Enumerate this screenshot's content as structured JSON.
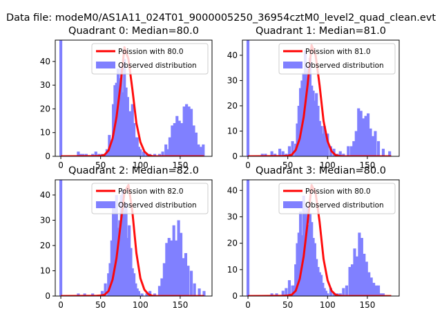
{
  "figure": {
    "suptitle": "Data file: modeM0/AS1A11_024T01_9000005250_36954cztM0_level2_quad_clean.evt"
  },
  "chart_data": [
    {
      "type": "bar",
      "title": "Quadrant 0: Median=80.0",
      "xlabel": "",
      "ylabel": "",
      "xlim": [
        -7,
        190
      ],
      "ylim": [
        0,
        49
      ],
      "xticks": [
        0,
        50,
        100,
        150
      ],
      "yticks": [
        0,
        10,
        20,
        30,
        40
      ],
      "legend": "top-right",
      "histogram": {
        "name": "Observed distribution",
        "color": "#8080ff",
        "bin_width": 3.6,
        "bin_centers": [
          0,
          4,
          22,
          25,
          28,
          32,
          36,
          40,
          44,
          48,
          52,
          56,
          58,
          61,
          64,
          66,
          68,
          70,
          72,
          74,
          76,
          78,
          80,
          82,
          84,
          86,
          88,
          90,
          92,
          94,
          96,
          98,
          100,
          104,
          108,
          112,
          118,
          124,
          128,
          132,
          134,
          137,
          140,
          143,
          146,
          149,
          152,
          155,
          158,
          161,
          164,
          167,
          170,
          173,
          176,
          179
        ],
        "counts": [
          49,
          0,
          2,
          1,
          1,
          1,
          0,
          1,
          2,
          1,
          1,
          1,
          3,
          9,
          6,
          22,
          30,
          31,
          37,
          33,
          38,
          27,
          41,
          29,
          25,
          19,
          19,
          22,
          14,
          8,
          8,
          4,
          3,
          2,
          1,
          1,
          1,
          1,
          2,
          5,
          3,
          8,
          13,
          14,
          17,
          15,
          14,
          21,
          22,
          21,
          20,
          13,
          10,
          5,
          4,
          5
        ]
      },
      "line": {
        "name": "Poission with 80.0",
        "color": "#ff0000",
        "x": [
          0,
          45,
          50,
          55,
          60,
          65,
          70,
          75,
          80,
          85,
          90,
          95,
          100,
          105,
          110,
          115,
          120,
          180
        ],
        "y": [
          0,
          0.1,
          0.2,
          0.6,
          2.5,
          7.5,
          16.5,
          30,
          46,
          41,
          28,
          14,
          6,
          2,
          0.5,
          0.1,
          0,
          0
        ]
      }
    },
    {
      "type": "bar",
      "title": "Quadrant 1: Median=81.0",
      "xlabel": "",
      "ylabel": "",
      "xlim": [
        -7,
        190
      ],
      "ylim": [
        0,
        46
      ],
      "xticks": [
        0,
        50,
        100,
        150
      ],
      "yticks": [
        0,
        10,
        20,
        30,
        40
      ],
      "legend": "top-right",
      "histogram": {
        "name": "Observed distribution",
        "color": "#8080ff",
        "bin_width": 3.6,
        "bin_centers": [
          0,
          18,
          22,
          30,
          34,
          40,
          44,
          48,
          52,
          56,
          60,
          62,
          64,
          66,
          68,
          70,
          72,
          74,
          76,
          78,
          80,
          82,
          84,
          86,
          88,
          90,
          92,
          94,
          96,
          98,
          100,
          104,
          108,
          112,
          116,
          120,
          126,
          130,
          133,
          136,
          139,
          142,
          145,
          148,
          151,
          154,
          157,
          160,
          164,
          170,
          178
        ],
        "counts": [
          46,
          1,
          1,
          2,
          1,
          3,
          2,
          1,
          4,
          6,
          5,
          13,
          20,
          27,
          30,
          33,
          42,
          34,
          36,
          39,
          28,
          26,
          22,
          25,
          20,
          14,
          12,
          9,
          12,
          8,
          9,
          4,
          3,
          1,
          2,
          1,
          4,
          4,
          6,
          10,
          19,
          18,
          15,
          16,
          17,
          11,
          8,
          10,
          6,
          3,
          2
        ]
      },
      "line": {
        "name": "Poission with 81.0",
        "color": "#ff0000",
        "x": [
          0,
          45,
          50,
          55,
          60,
          65,
          70,
          75,
          80,
          85,
          90,
          95,
          100,
          105,
          110,
          115,
          120,
          180
        ],
        "y": [
          0,
          0.1,
          0.2,
          0.6,
          2.5,
          7,
          15.5,
          28.5,
          44,
          40,
          28,
          14,
          6,
          2,
          0.5,
          0.1,
          0,
          0
        ]
      }
    },
    {
      "type": "bar",
      "title": "Quadrant 2: Median=82.0",
      "xlabel": "",
      "ylabel": "",
      "xlim": [
        -7,
        190
      ],
      "ylim": [
        0,
        46
      ],
      "xticks": [
        0,
        50,
        100,
        150
      ],
      "yticks": [
        0,
        10,
        20,
        30,
        40
      ],
      "legend": "top-right",
      "histogram": {
        "name": "Observed distribution",
        "color": "#8080ff",
        "bin_width": 3.6,
        "bin_centers": [
          0,
          22,
          30,
          40,
          52,
          56,
          60,
          62,
          64,
          66,
          68,
          70,
          72,
          74,
          76,
          78,
          80,
          82,
          84,
          86,
          88,
          90,
          92,
          94,
          96,
          98,
          102,
          108,
          112,
          118,
          124,
          127,
          130,
          133,
          136,
          139,
          142,
          145,
          148,
          151,
          154,
          157,
          160,
          164,
          168,
          174,
          180
        ],
        "counts": [
          46,
          1,
          1,
          1,
          2,
          5,
          9,
          13,
          22,
          36,
          35,
          40,
          27,
          30,
          40,
          42,
          34,
          37,
          23,
          28,
          19,
          11,
          9,
          5,
          3,
          2,
          1,
          1,
          2,
          1,
          4,
          7,
          13,
          21,
          23,
          22,
          28,
          22,
          30,
          25,
          15,
          17,
          12,
          10,
          5,
          3,
          2
        ]
      },
      "line": {
        "name": "Poission with 82.0",
        "color": "#ff0000",
        "x": [
          0,
          45,
          50,
          55,
          60,
          65,
          70,
          75,
          80,
          85,
          90,
          95,
          100,
          105,
          110,
          115,
          120,
          180
        ],
        "y": [
          0,
          0.1,
          0.2,
          0.5,
          2,
          6.5,
          15,
          28,
          41,
          44,
          33,
          17,
          7,
          2.5,
          0.7,
          0.1,
          0,
          0
        ]
      }
    },
    {
      "type": "bar",
      "title": "Quadrant 3: Median=80.0",
      "xlabel": "",
      "ylabel": "",
      "xlim": [
        -7,
        190
      ],
      "ylim": [
        0,
        44
      ],
      "xticks": [
        0,
        50,
        100,
        150
      ],
      "yticks": [
        0,
        10,
        20,
        30,
        40
      ],
      "legend": "top-right",
      "histogram": {
        "name": "Observed distribution",
        "color": "#8080ff",
        "bin_width": 3.6,
        "bin_centers": [
          0,
          30,
          36,
          44,
          48,
          52,
          56,
          58,
          60,
          62,
          64,
          66,
          68,
          70,
          72,
          74,
          76,
          78,
          80,
          82,
          84,
          86,
          88,
          90,
          92,
          94,
          96,
          98,
          100,
          104,
          108,
          112,
          116,
          120,
          124,
          128,
          131,
          134,
          137,
          140,
          143,
          146,
          149,
          152,
          155,
          158,
          161,
          164,
          167,
          170
        ],
        "counts": [
          44,
          1,
          1,
          2,
          3,
          6,
          4,
          4,
          12,
          20,
          24,
          32,
          23,
          38,
          32,
          34,
          27,
          31,
          28,
          22,
          20,
          14,
          11,
          9,
          8,
          5,
          3,
          2,
          1,
          3,
          1,
          1,
          1,
          3,
          4,
          11,
          12,
          18,
          15,
          24,
          22,
          16,
          13,
          9,
          7,
          5,
          4,
          4,
          1,
          1
        ]
      },
      "line": {
        "name": "Poission with 80.0",
        "color": "#ff0000",
        "x": [
          0,
          45,
          50,
          55,
          60,
          65,
          70,
          75,
          80,
          85,
          90,
          95,
          100,
          105,
          110,
          115,
          120,
          180
        ],
        "y": [
          0,
          0.1,
          0.2,
          0.5,
          2,
          6.5,
          15,
          28,
          42,
          39,
          28,
          14,
          6,
          2,
          0.5,
          0.1,
          0,
          0
        ]
      }
    }
  ]
}
